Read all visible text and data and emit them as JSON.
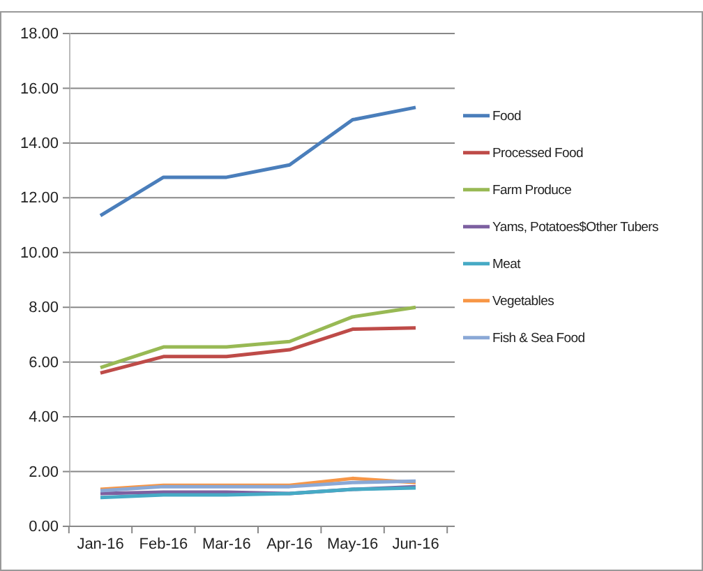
{
  "chart_data": {
    "type": "line",
    "categories": [
      "Jan-16",
      "Feb-16",
      "Mar-16",
      "Apr-16",
      "May-16",
      "Jun-16"
    ],
    "series": [
      {
        "name": "Food",
        "color": "#4a7ebb",
        "values": [
          11.35,
          12.75,
          12.75,
          13.2,
          14.85,
          15.3
        ]
      },
      {
        "name": "Processed Food",
        "color": "#be4b48",
        "values": [
          5.6,
          6.2,
          6.2,
          6.45,
          7.2,
          7.25
        ]
      },
      {
        "name": "Farm Produce",
        "color": "#98b954",
        "values": [
          5.8,
          6.55,
          6.55,
          6.75,
          7.65,
          8.0
        ]
      },
      {
        "name": "Yams, Potatoes$Other Tubers",
        "color": "#7d60a0",
        "values": [
          1.2,
          1.25,
          1.25,
          1.2,
          1.35,
          1.45
        ]
      },
      {
        "name": "Meat",
        "color": "#46aac5",
        "values": [
          1.05,
          1.15,
          1.15,
          1.2,
          1.35,
          1.4
        ]
      },
      {
        "name": "Vegetables",
        "color": "#f79646",
        "values": [
          1.35,
          1.5,
          1.5,
          1.5,
          1.75,
          1.6
        ]
      },
      {
        "name": "Fish & Sea Food",
        "color": "#8aa8d6",
        "values": [
          1.3,
          1.45,
          1.45,
          1.45,
          1.6,
          1.65
        ]
      }
    ],
    "ylim": [
      0,
      18
    ],
    "yticks": [
      {
        "value": 0,
        "label": "0.00"
      },
      {
        "value": 2,
        "label": "2.00"
      },
      {
        "value": 4,
        "label": "4.00"
      },
      {
        "value": 6,
        "label": "6.00"
      },
      {
        "value": 8,
        "label": "8.00"
      },
      {
        "value": 10,
        "label": "10.00"
      },
      {
        "value": 12,
        "label": "12.00"
      },
      {
        "value": 14,
        "label": "14.00"
      },
      {
        "value": 16,
        "label": "16.00"
      },
      {
        "value": 18,
        "label": "18.00"
      }
    ],
    "grid": "y",
    "legend": "right",
    "marker": "none",
    "line_style": "solid"
  }
}
